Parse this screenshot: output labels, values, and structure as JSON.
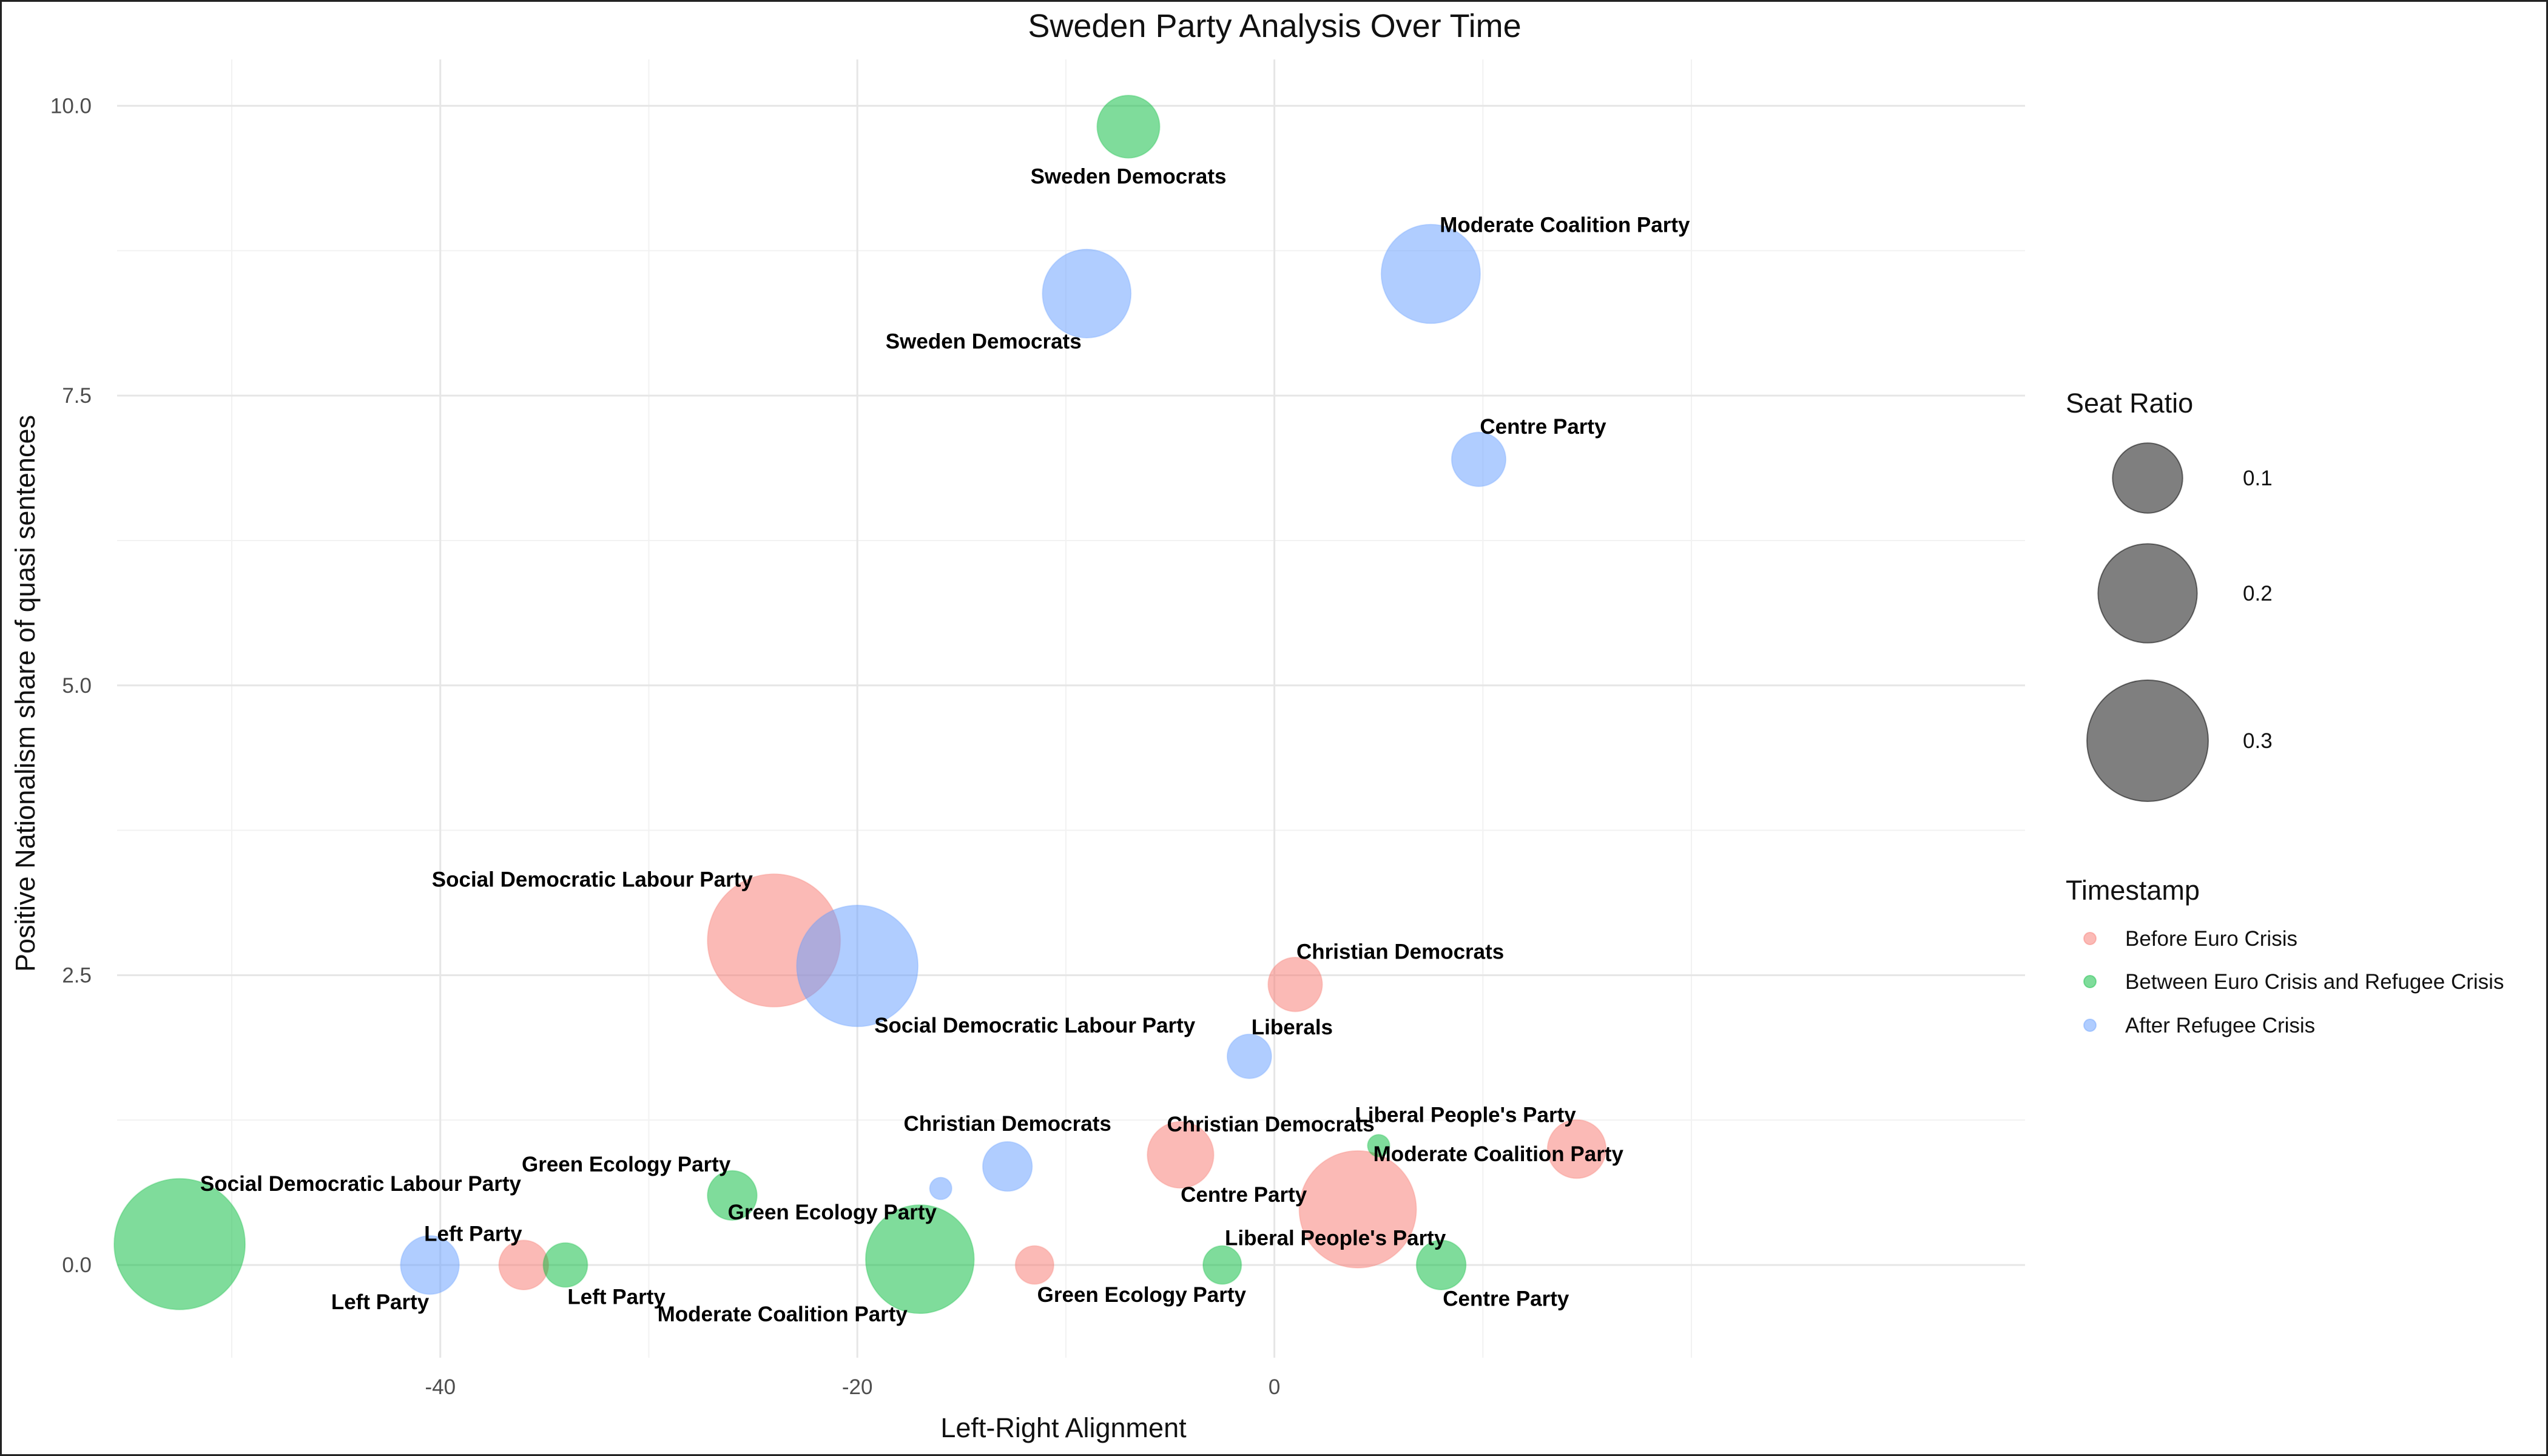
{
  "chart_data": {
    "type": "scatter",
    "title": "Sweden Party Analysis Over Time",
    "xlabel": "Left-Right Alignment",
    "ylabel": "Positive Nationalism share of quasi sentences",
    "xlim": [
      -55.5,
      36
    ],
    "ylim": [
      -0.8,
      10.4
    ],
    "x_ticks": [
      -40,
      -20,
      0
    ],
    "x_tick_labels": [
      "-40",
      "-20",
      "0"
    ],
    "y_ticks": [
      0,
      2.5,
      5,
      7.5,
      10
    ],
    "y_tick_labels": [
      "0.0",
      "2.5",
      "5.0",
      "7.5",
      "10.0"
    ],
    "grid": true,
    "legend_placement": "right",
    "size_legend": {
      "title": "Seat Ratio",
      "entries": [
        {
          "label": "0.1",
          "value": 0.1
        },
        {
          "label": "0.2",
          "value": 0.2
        },
        {
          "label": "0.3",
          "value": 0.3
        }
      ]
    },
    "color_legend": {
      "title": "Timestamp",
      "entries": [
        {
          "label": "Before Euro Crisis",
          "color": "#F8766D"
        },
        {
          "label": "Between Euro Crisis and Refugee Crisis",
          "color": "#00BA38"
        },
        {
          "label": "After Refugee Crisis",
          "color": "#619CFF"
        }
      ]
    },
    "series": [
      {
        "name": "Before Euro Crisis",
        "color": "#F8766D",
        "points": [
          {
            "label": "Social Democratic Labour Party",
            "x": -24,
            "y": 2.8,
            "size": 0.36,
            "label_pos": "above-left"
          },
          {
            "label": "Christian Democrats",
            "x": 1,
            "y": 2.42,
            "size": 0.06,
            "label_pos": "above-right"
          },
          {
            "label": "Centre Party",
            "x": -4.5,
            "y": 0.95,
            "size": 0.09,
            "label_pos": "below-right"
          },
          {
            "label": "Moderate Coalition Party",
            "x": 4,
            "y": 0.48,
            "size": 0.28,
            "label_pos": "above-right"
          },
          {
            "label": "Liberal People's Party",
            "x": 14.5,
            "y": 1.0,
            "size": 0.07,
            "label_pos": "above-left"
          },
          {
            "label": "Left Party",
            "x": -36,
            "y": 0.0,
            "size": 0.05,
            "label_pos": "above-left"
          },
          {
            "label": "Green Ecology Party",
            "x": -11.5,
            "y": 0.0,
            "size": 0.03,
            "label_pos": "below-right"
          }
        ]
      },
      {
        "name": "Between Euro Crisis and Refugee Crisis",
        "color": "#00BA38",
        "points": [
          {
            "label": "Sweden Democrats",
            "x": -7,
            "y": 9.82,
            "size": 0.08,
            "label_pos": "below"
          },
          {
            "label": "Social Democratic Labour Party",
            "x": -52.5,
            "y": 0.18,
            "size": 0.35,
            "label_pos": "above-right"
          },
          {
            "label": "Green Ecology Party",
            "x": -26,
            "y": 0.6,
            "size": 0.05,
            "label_pos": "above-left"
          },
          {
            "label": "Left Party",
            "x": -34,
            "y": 0.0,
            "size": 0.04,
            "label_pos": "below-right"
          },
          {
            "label": "Moderate Coalition Party",
            "x": -17,
            "y": 0.05,
            "size": 0.24,
            "label_pos": "below-left"
          },
          {
            "label": "Christian Democrats",
            "x": 5,
            "y": 1.03,
            "size": 0.01,
            "label_pos": "above-left"
          },
          {
            "label": "Liberal People's Party",
            "x": -2.5,
            "y": 0.0,
            "size": 0.03,
            "label_pos": "above-right"
          },
          {
            "label": "Centre Party",
            "x": 8,
            "y": 0.0,
            "size": 0.05,
            "label_pos": "below-right"
          }
        ]
      },
      {
        "name": "After Refugee Crisis",
        "color": "#619CFF",
        "points": [
          {
            "label": "Moderate Coalition Party",
            "x": 7.5,
            "y": 8.55,
            "size": 0.2,
            "label_pos": "above-right"
          },
          {
            "label": "Sweden Democrats",
            "x": -9,
            "y": 8.38,
            "size": 0.16,
            "label_pos": "below-left"
          },
          {
            "label": "Centre Party",
            "x": 9.8,
            "y": 6.95,
            "size": 0.06,
            "label_pos": "above-right"
          },
          {
            "label": "Social Democratic Labour Party",
            "x": -20,
            "y": 2.58,
            "size": 0.3,
            "label_pos": "below-right"
          },
          {
            "label": "Liberals",
            "x": -1.2,
            "y": 1.8,
            "size": 0.04,
            "label_pos": "above-right"
          },
          {
            "label": "Christian Democrats",
            "x": -12.8,
            "y": 0.85,
            "size": 0.05,
            "label_pos": "above"
          },
          {
            "label": "Green Ecology Party",
            "x": -16,
            "y": 0.66,
            "size": 0.01,
            "label_pos": "below-left"
          },
          {
            "label": "Left Party",
            "x": -40.5,
            "y": 0.0,
            "size": 0.07,
            "label_pos": "below-left"
          }
        ]
      }
    ]
  }
}
